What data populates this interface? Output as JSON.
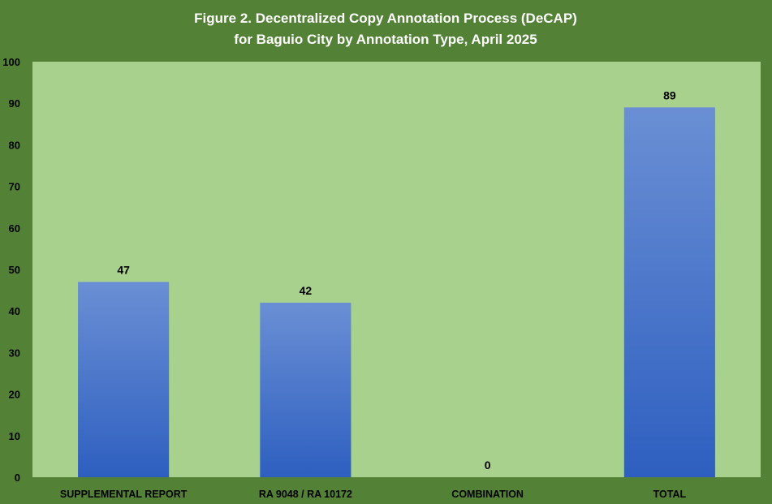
{
  "colors": {
    "frame": "#538135",
    "plot_background": "#a9d18e",
    "bar_top": "#6a8fd4",
    "bar_bottom": "#2e5fc0",
    "title": "#ffffff",
    "text": "#000000"
  },
  "chart_data": {
    "type": "bar",
    "title": "Figure 2. Decentralized Copy Annotation Process (DeCAP)",
    "subtitle": "for Baguio City by Annotation Type, April 2025",
    "xlabel": "",
    "ylabel": "",
    "ylim": [
      0,
      100
    ],
    "yticks": [
      0,
      10,
      20,
      30,
      40,
      50,
      60,
      70,
      80,
      90,
      100
    ],
    "grid": false,
    "legend": "none",
    "categories": [
      "SUPPLEMENTAL REPORT",
      "RA 9048 / RA 10172",
      "COMBINATION",
      "TOTAL"
    ],
    "values": [
      47,
      42,
      0,
      89
    ],
    "data_labels": [
      "47",
      "42",
      "0",
      "89"
    ]
  }
}
